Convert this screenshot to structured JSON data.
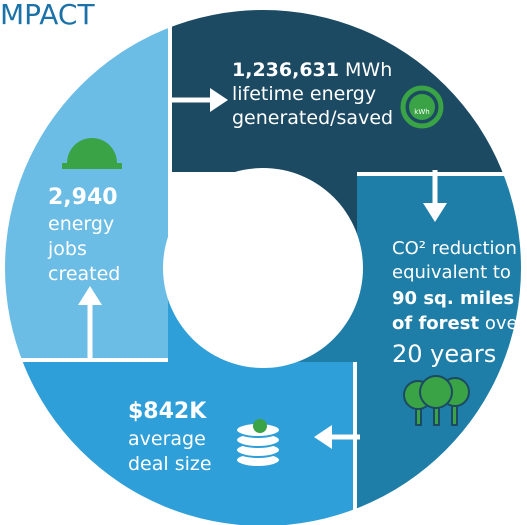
{
  "header": {
    "title": "MPACT"
  },
  "segments": [
    {
      "value": "1,236,631",
      "unit": "MWh",
      "lines": [
        "lifetime energy",
        "generated/saved"
      ],
      "icon_label": "kWh"
    },
    {
      "lines": [
        "CO² reduction",
        "equivalent to"
      ],
      "highlight": [
        "90 sq. miles",
        "of forest"
      ],
      "suffix": "over",
      "tail": "20 years"
    },
    {
      "value": "$842K",
      "lines": [
        "average",
        "deal size"
      ]
    },
    {
      "value": "2,940",
      "lines": [
        "energy",
        "jobs",
        "created"
      ]
    }
  ]
}
